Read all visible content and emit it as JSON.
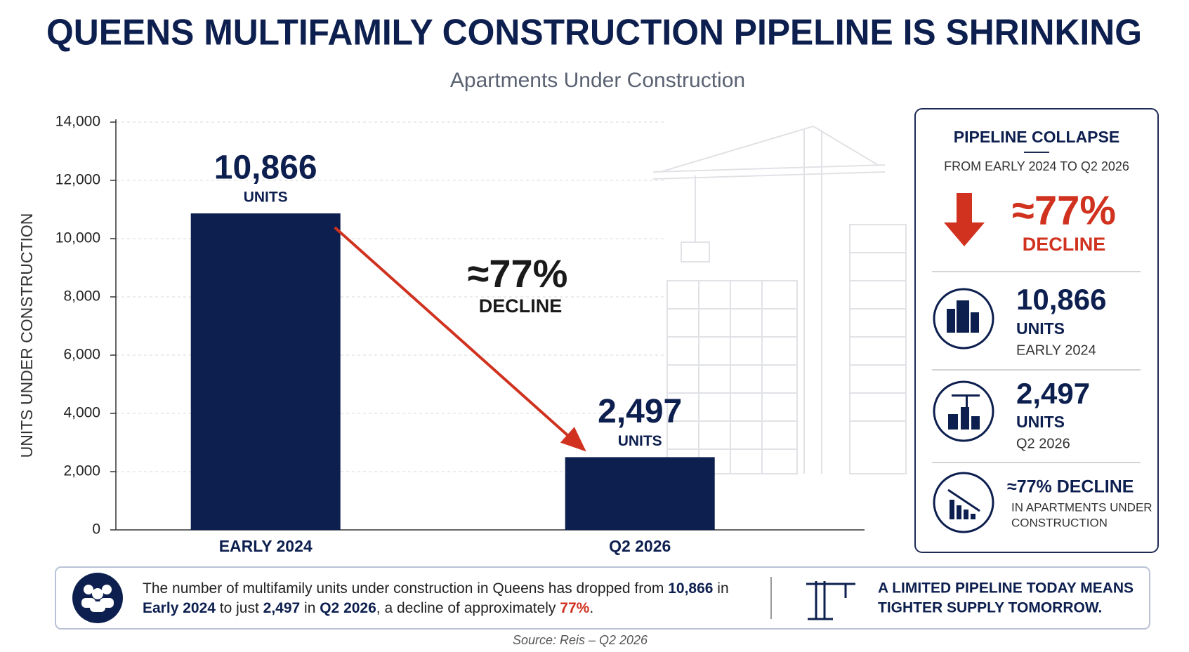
{
  "title": "QUEENS MULTIFAMILY CONSTRUCTION PIPELINE IS SHRINKING",
  "chart_data": {
    "type": "bar",
    "subtitle": "Apartments Under Construction",
    "y_axis_label": "UNITS UNDER CONSTRUCTION",
    "categories": [
      "EARLY 2024",
      "Q2 2026"
    ],
    "values": [
      10866,
      2497
    ],
    "value_labels": [
      "10,866",
      "2,497"
    ],
    "value_label_unit": "UNITS",
    "color": "#0d1f4f",
    "ylim": [
      0,
      14000
    ],
    "yticks": [
      0,
      {
        "value": 2000,
        "label": "2,000"
      },
      {
        "value": 4000,
        "label": "4,000"
      },
      {
        "value": 6000,
        "label": "6,000"
      },
      {
        "value": 8000,
        "label": "8,000"
      },
      {
        "value": 10000,
        "label": "10,000"
      },
      {
        "value": 12000,
        "label": "12,000"
      },
      {
        "value": 14000,
        "label": "14,000"
      }
    ],
    "grid": true,
    "annotation": {
      "value": "≈77%",
      "label": "DECLINE",
      "color": "#d0321f"
    }
  },
  "side_panel": {
    "title": "PIPELINE COLLAPSE",
    "subtitle": "FROM EARLY 2024 TO Q2 2026",
    "headline_value": "≈77%",
    "headline_label": "DECLINE",
    "stats": [
      {
        "value": "10,866",
        "unit": "UNITS",
        "period": "EARLY 2024"
      },
      {
        "value": "2,497",
        "unit": "UNITS",
        "period": "Q2 2026"
      }
    ],
    "note": {
      "headline": "≈77% DECLINE",
      "lines": [
        "IN APARTMENTS UNDER",
        "CONSTRUCTION"
      ]
    }
  },
  "summary": {
    "lines": [
      [
        {
          "text": "The number of multifamily units under construction in Queens has dropped from ",
          "style": "normal"
        },
        {
          "text": "10,866",
          "style": "bold"
        },
        {
          "text": " in",
          "style": "normal"
        }
      ],
      [
        {
          "text": "Early 2024",
          "style": "bold"
        },
        {
          "text": " to just ",
          "style": "normal"
        },
        {
          "text": "2,497",
          "style": "bold"
        },
        {
          "text": " in ",
          "style": "normal"
        },
        {
          "text": "Q2 2026",
          "style": "bold"
        },
        {
          "text": ", a decline of approximately ",
          "style": "normal"
        },
        {
          "text": "77%",
          "style": "highlight"
        },
        {
          "text": ".",
          "style": "normal"
        }
      ]
    ],
    "callout": [
      "A LIMITED PIPELINE TODAY MEANS",
      "TIGHTER SUPPLY TOMORROW."
    ]
  },
  "source": "Source: Reis – Q2 2026"
}
